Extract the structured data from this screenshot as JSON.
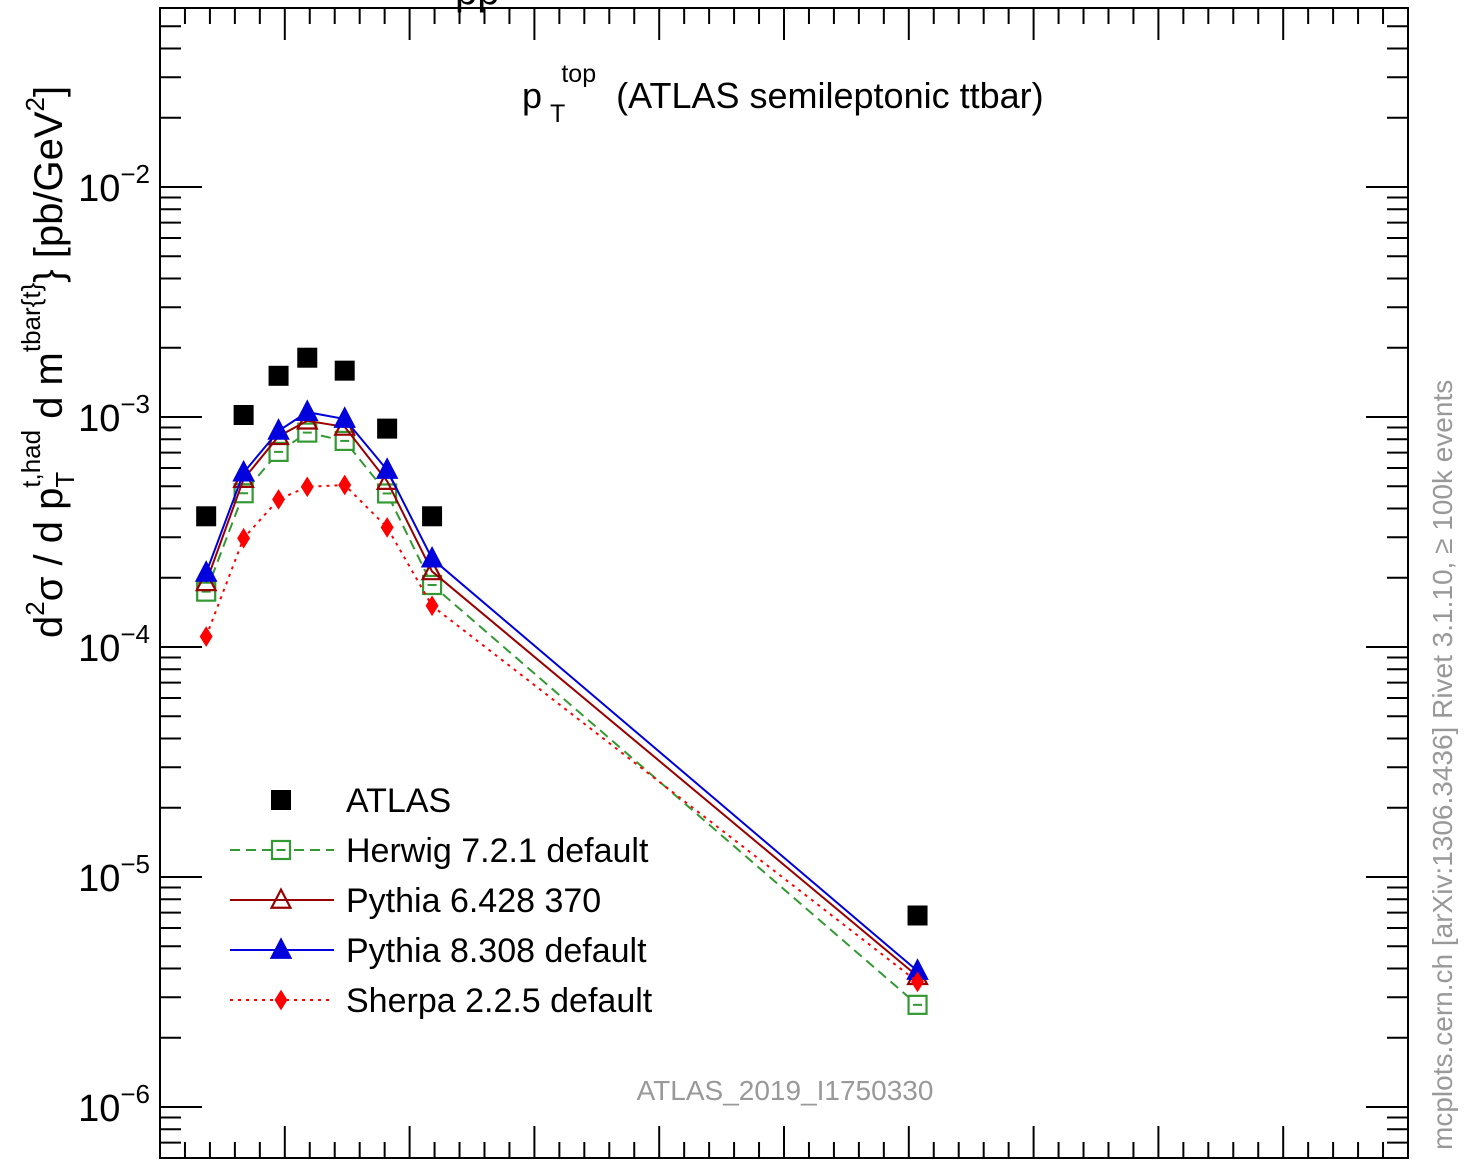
{
  "chart_data": {
    "type": "scatter",
    "title": "(ATLAS semileptonic ttbar)",
    "title_var": "p",
    "title_sup": "top",
    "title_sub": "T",
    "top_text": "pp",
    "ylabel": {
      "d2": "d",
      "d2_sup": "2",
      "sigma": "σ  /  d p",
      "pt_sup": "t,had",
      "pt_sub": "T",
      "dm": " d m",
      "m_sup": "tbar{t}",
      "m_tail": "} [pb/GeV",
      "unit_sup": "2",
      "close": "]"
    },
    "y_scale": "log",
    "ylim": [
      6e-07,
      0.06
    ],
    "y_ticks": [
      {
        "value": 0.01,
        "base": "10",
        "exp": "−2"
      },
      {
        "value": 0.001,
        "base": "10",
        "exp": "−3"
      },
      {
        "value": 0.0001,
        "base": "10",
        "exp": "−4"
      },
      {
        "value": 1e-05,
        "base": "10",
        "exp": "−5"
      },
      {
        "value": 1e-06,
        "base": "10",
        "exp": "−6"
      }
    ],
    "xlim": [
      0,
      10
    ],
    "x": [
      0.37,
      0.67,
      0.95,
      1.18,
      1.48,
      1.82,
      2.18,
      6.07
    ],
    "series": [
      {
        "name": "ATLAS",
        "marker": "square-filled",
        "line": "none",
        "color": "#000000",
        "values": [
          0.00037,
          0.00102,
          0.00151,
          0.00181,
          0.00159,
          0.00089,
          0.00037,
          6.8e-06
        ]
      },
      {
        "name": "Herwig 7.2.1 default",
        "marker": "square-open",
        "line": "dashed",
        "color": "#339933",
        "values": [
          0.000174,
          0.000466,
          0.000705,
          0.000855,
          0.000787,
          0.000465,
          0.000186,
          2.78e-06
        ]
      },
      {
        "name": "Pythia 6.428 370",
        "marker": "triangle-open",
        "line": "solid",
        "color": "#990000",
        "values": [
          0.000191,
          0.000537,
          0.000824,
          0.000963,
          0.000905,
          0.000526,
          0.000213,
          3.7e-06
        ]
      },
      {
        "name": "Pythia 8.308 default",
        "marker": "triangle-filled",
        "line": "solid",
        "color": "#0000dd",
        "values": [
          0.00021,
          0.000573,
          0.00087,
          0.00105,
          0.00098,
          0.000588,
          0.000242,
          3.9e-06
        ]
      },
      {
        "name": "Sherpa 2.2.5 default",
        "marker": "diamond-filled",
        "line": "dotted",
        "color": "#ff0000",
        "values": [
          0.000111,
          0.000297,
          0.000438,
          0.000497,
          0.000506,
          0.000331,
          0.000151,
          3.5e-06
        ]
      }
    ],
    "legend_position": "lower-left",
    "analysis_label": "ATLAS_2019_I1750330",
    "side_label": "mcplots.cern.ch [arXiv:1306.3436]   Rivet 3.1.10, ≥ 100k events"
  }
}
